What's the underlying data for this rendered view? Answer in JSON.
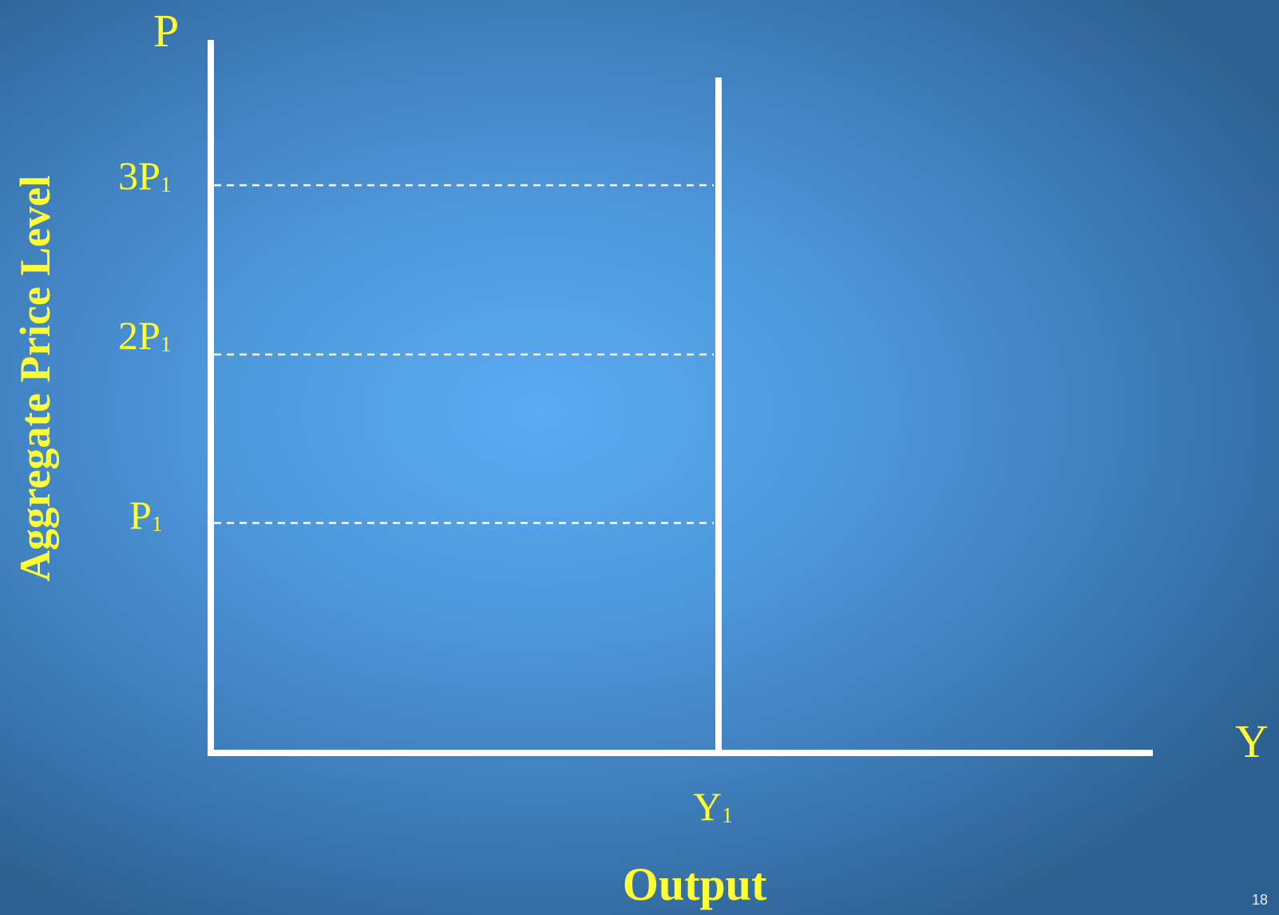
{
  "diagram": {
    "axis_p_label": "P",
    "axis_y_label": "Y",
    "y_axis_title": "Aggregate Price Level",
    "x_axis_title": "Output",
    "price_ticks": [
      {
        "main": "3P",
        "sub": "1"
      },
      {
        "main": "2P",
        "sub": "1"
      },
      {
        "main": "P",
        "sub": "1"
      }
    ],
    "output_tick": {
      "main": "Y",
      "sub": "1"
    },
    "colors": {
      "label": "#ffff33",
      "axis": "#ffffff",
      "background": "#4e98dc"
    }
  },
  "slide": {
    "number": "18"
  }
}
